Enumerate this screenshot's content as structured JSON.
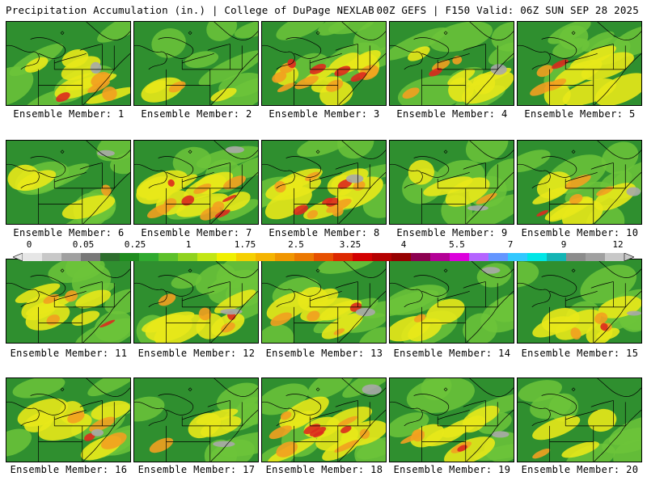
{
  "header": {
    "title": "Precipitation Accumulation (in.) | College of DuPage NEXLAB",
    "run_info": "00Z GEFS | F150 Valid: 06Z SUN SEP 28 2025"
  },
  "members": [
    {
      "label": "Ensemble Member: 1"
    },
    {
      "label": "Ensemble Member: 2"
    },
    {
      "label": "Ensemble Member: 3"
    },
    {
      "label": "Ensemble Member: 4"
    },
    {
      "label": "Ensemble Member: 5"
    },
    {
      "label": "Ensemble Member: 6"
    },
    {
      "label": "Ensemble Member: 7"
    },
    {
      "label": "Ensemble Member: 8"
    },
    {
      "label": "Ensemble Member: 9"
    },
    {
      "label": "Ensemble Member: 10"
    },
    {
      "label": "Ensemble Member: 11"
    },
    {
      "label": "Ensemble Member: 12"
    },
    {
      "label": "Ensemble Member: 13"
    },
    {
      "label": "Ensemble Member: 14"
    },
    {
      "label": "Ensemble Member: 15"
    },
    {
      "label": "Ensemble Member: 16"
    },
    {
      "label": "Ensemble Member: 17"
    },
    {
      "label": "Ensemble Member: 18"
    },
    {
      "label": "Ensemble Member: 19"
    },
    {
      "label": "Ensemble Member: 20"
    }
  ],
  "colorbar": {
    "labels": [
      "0",
      "0.05",
      "0.25",
      "1",
      "1.75",
      "2.5",
      "3.25",
      "4",
      "5.5",
      "7",
      "9",
      "12"
    ],
    "colors": [
      "#e6e6e6",
      "#c8c8c8",
      "#a0a0a0",
      "#787878",
      "#2d6e2d",
      "#1e8c1e",
      "#2faa2f",
      "#5cc02a",
      "#8fd21e",
      "#c2e614",
      "#f0f000",
      "#f5d000",
      "#f5b400",
      "#f09600",
      "#eb7800",
      "#e65000",
      "#dc2800",
      "#d20000",
      "#b40000",
      "#960000",
      "#8c0050",
      "#b40096",
      "#dc00dc",
      "#b464ff",
      "#6496ff",
      "#32c8ff",
      "#00e6e6",
      "#14b4b4",
      "#8c8c8c",
      "#a0a0a0",
      "#c8c8c8"
    ]
  }
}
